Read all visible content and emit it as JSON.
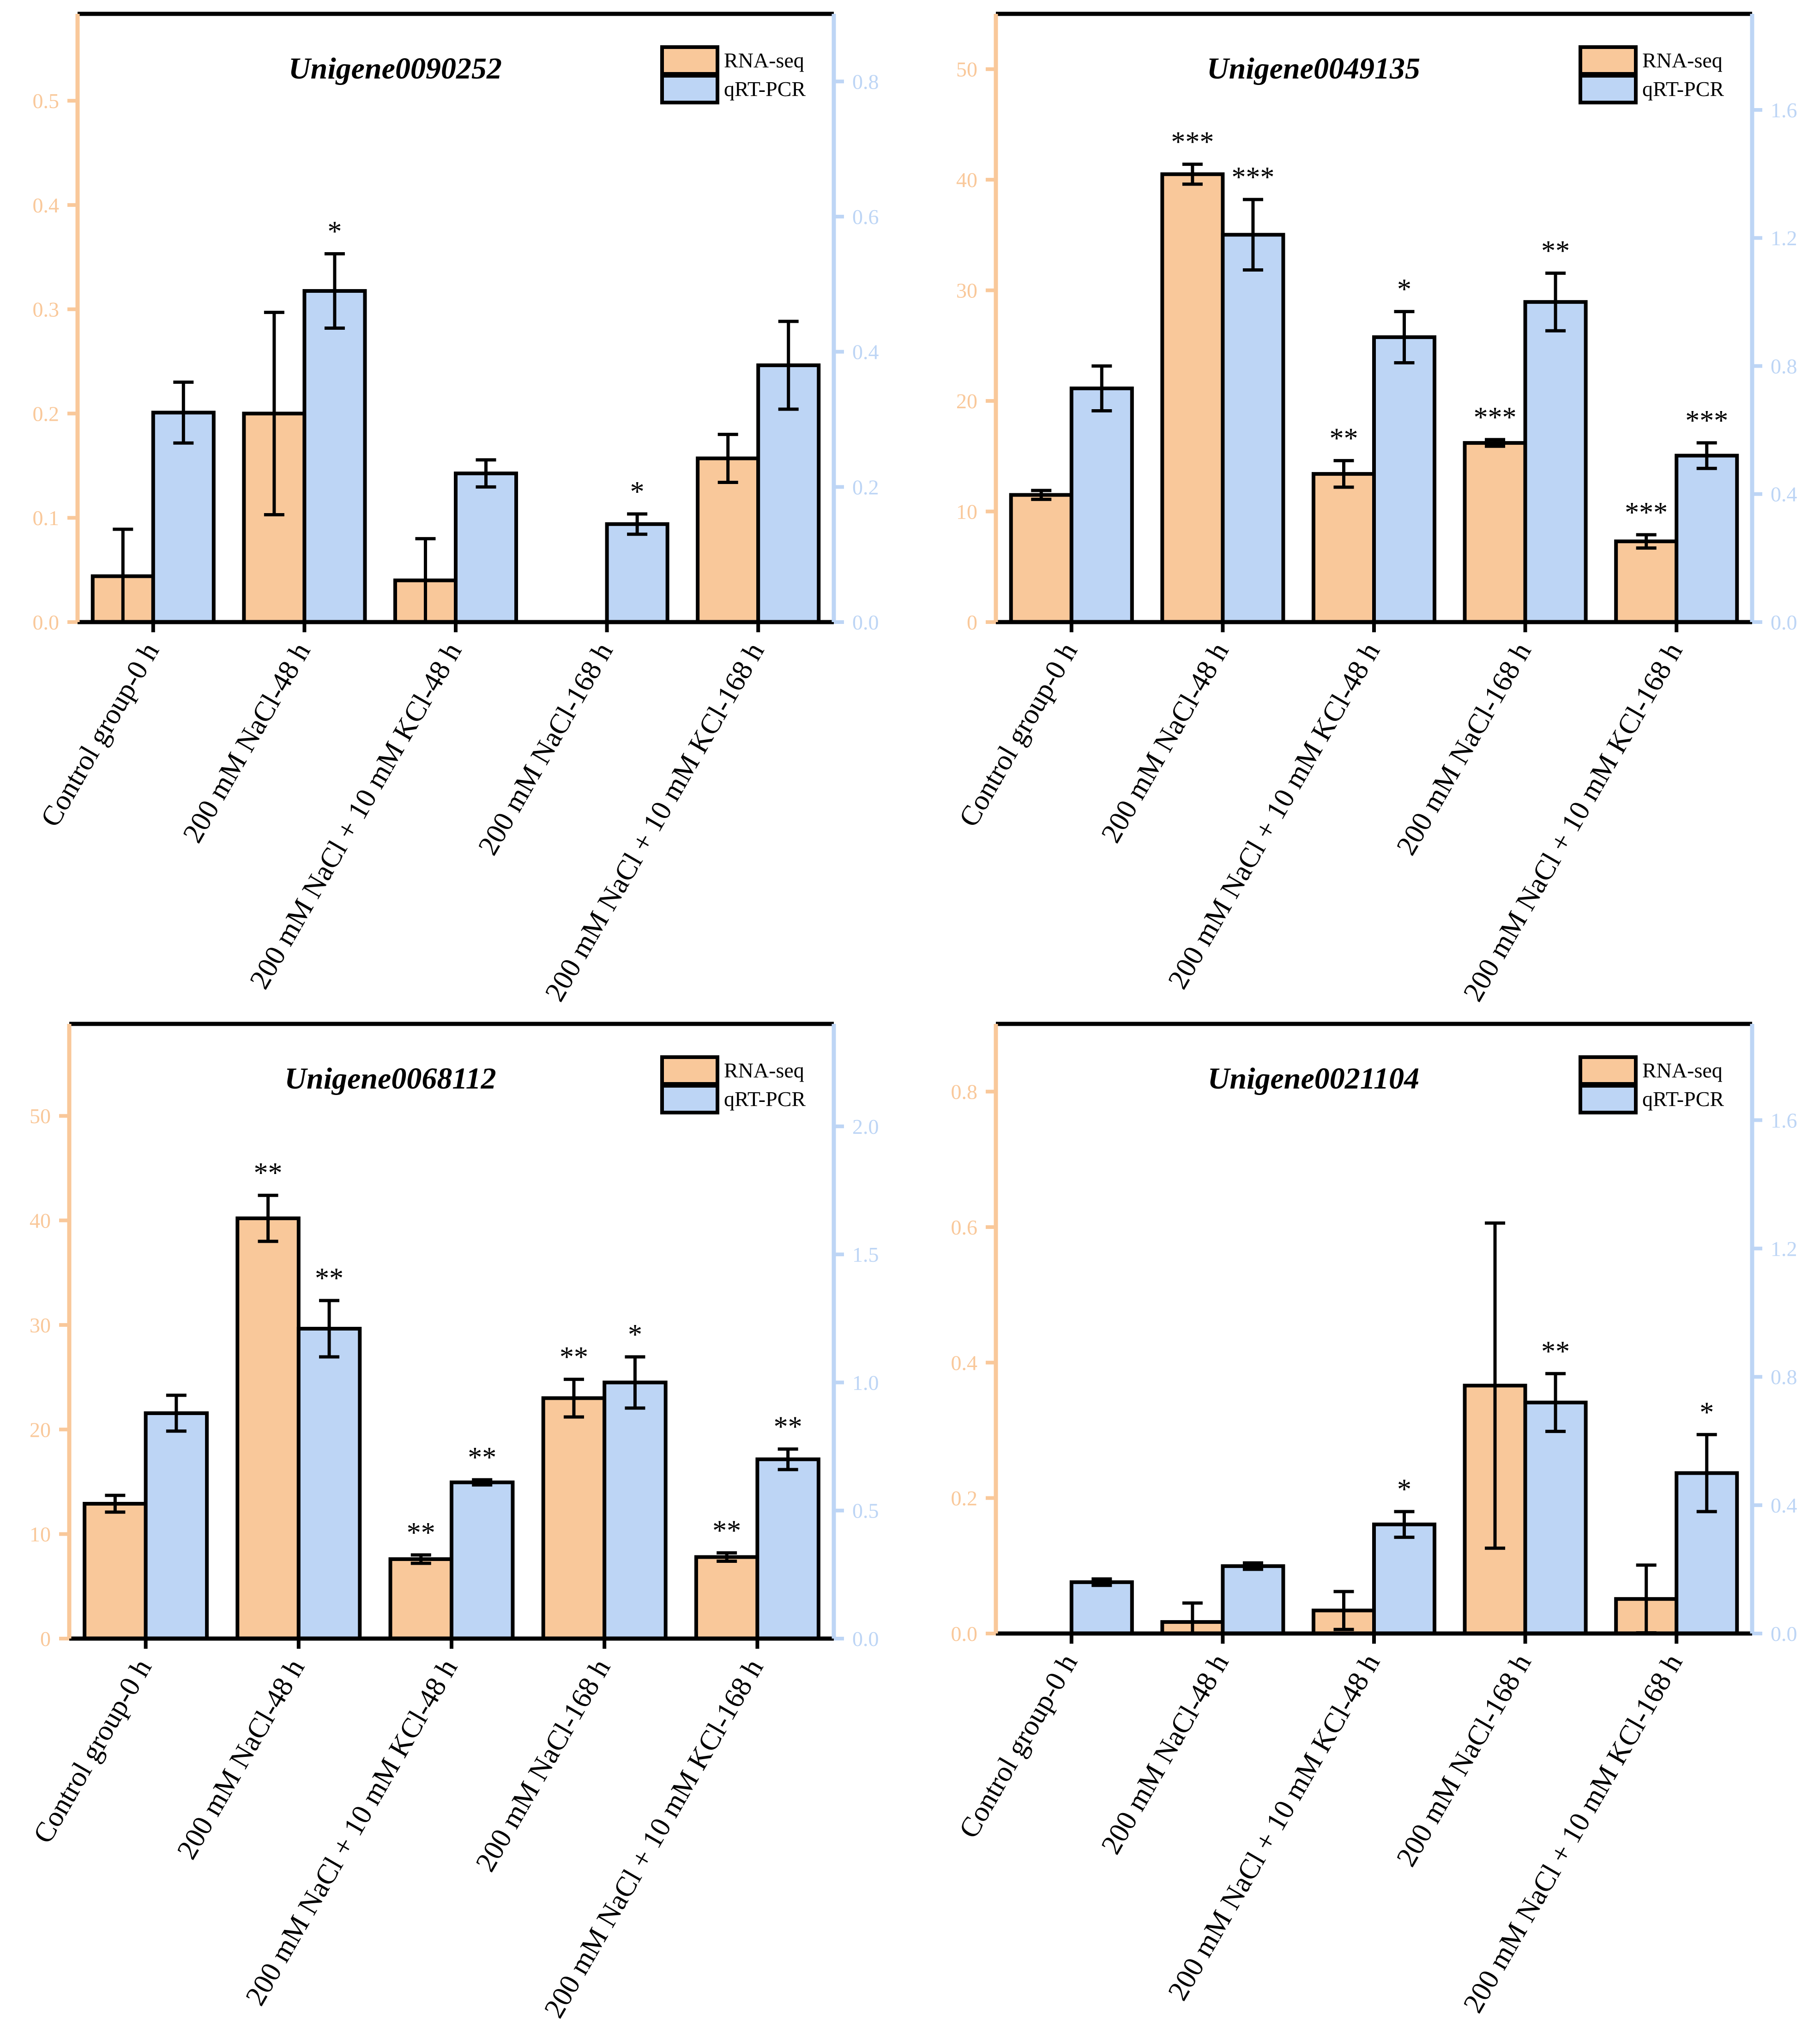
{
  "colors": {
    "rna": "#F9C89A",
    "qpcr": "#BDD5F5",
    "left_axis": "#F9C89A",
    "right_axis": "#BDD5F5",
    "bar_stroke": "#000000"
  },
  "chart_data": [
    {
      "type": "bar",
      "title": "Unigene0090252",
      "categories": [
        "Control group-0 h",
        "200 mM NaCl-48 h",
        "200 mM NaCl + 10 mM KCl-48 h",
        "200 mM NaCl-168 h",
        "200 mM NaCl + 10 mM KCl-168 h"
      ],
      "series": [
        {
          "name": "RNA-seq",
          "axis": "left",
          "values": [
            0.044,
            0.2,
            0.04,
            0,
            0.157
          ],
          "errors": [
            0.045,
            0.097,
            0.04,
            0,
            0.023
          ],
          "sig": [
            "",
            "",
            "",
            "",
            ""
          ]
        },
        {
          "name": "qRT-PCR",
          "axis": "right",
          "values": [
            0.31,
            0.49,
            0.22,
            0.145,
            0.38
          ],
          "errors": [
            0.045,
            0.055,
            0.02,
            0.015,
            0.065
          ],
          "sig": [
            "",
            "*",
            "",
            "*",
            ""
          ]
        }
      ],
      "left_axis": {
        "min": 0,
        "max": 0.5833,
        "ticks": [
          0.0,
          0.1,
          0.2,
          0.3,
          0.4,
          0.5
        ],
        "labels": [
          "0.0",
          "0.1",
          "0.2",
          "0.3",
          "0.4",
          "0.5"
        ]
      },
      "right_axis": {
        "min": 0,
        "max": 0.9,
        "ticks": [
          0.0,
          0.2,
          0.4,
          0.6,
          0.8
        ],
        "labels": [
          "0.0",
          "0.2",
          "0.4",
          "0.6",
          "0.8"
        ]
      },
      "legend": [
        "RNA-seq",
        "qRT-PCR"
      ],
      "legend_position": "top-right"
    },
    {
      "type": "bar",
      "title": "Unigene0049135",
      "categories": [
        "Control group-0 h",
        "200 mM NaCl-48 h",
        "200 mM NaCl + 10 mM KCl-48 h",
        "200 mM NaCl-168 h",
        "200 mM NaCl + 10 mM KCl-168 h"
      ],
      "series": [
        {
          "name": "RNA-seq",
          "axis": "left",
          "values": [
            11.5,
            40.5,
            13.4,
            16.2,
            7.3
          ],
          "errors": [
            0.4,
            0.9,
            1.2,
            0.3,
            0.6
          ],
          "sig": [
            "",
            "***",
            "**",
            "***",
            "***"
          ]
        },
        {
          "name": "qRT-PCR",
          "axis": "right",
          "values": [
            0.73,
            1.21,
            0.89,
            1.0,
            0.52
          ],
          "errors": [
            0.07,
            0.11,
            0.08,
            0.09,
            0.04
          ],
          "sig": [
            "",
            "***",
            "*",
            "**",
            "***"
          ]
        }
      ],
      "left_axis": {
        "min": 0,
        "max": 55,
        "ticks": [
          0,
          10,
          20,
          30,
          40,
          50
        ],
        "labels": [
          "0",
          "10",
          "20",
          "30",
          "40",
          "50"
        ]
      },
      "right_axis": {
        "min": 0,
        "max": 1.9,
        "ticks": [
          0.0,
          0.4,
          0.8,
          1.2,
          1.6
        ],
        "labels": [
          "0.0",
          "0.4",
          "0.8",
          "1.2",
          "1.6"
        ]
      },
      "legend": [
        "RNA-seq",
        "qRT-PCR"
      ],
      "legend_position": "top-right"
    },
    {
      "type": "bar",
      "title": "Unigene0068112",
      "categories": [
        "Control group-0 h",
        "200 mM NaCl-48 h",
        "200 mM NaCl + 10 mM KCl-48 h",
        "200 mM NaCl-168 h",
        "200 mM NaCl + 10 mM KCl-168 h"
      ],
      "series": [
        {
          "name": "RNA-seq",
          "axis": "left",
          "values": [
            12.9,
            40.2,
            7.6,
            23.0,
            7.8
          ],
          "errors": [
            0.8,
            2.2,
            0.4,
            1.8,
            0.4
          ],
          "sig": [
            "",
            "**",
            "**",
            "**",
            "**"
          ]
        },
        {
          "name": "qRT-PCR",
          "axis": "right",
          "values": [
            0.88,
            1.21,
            0.61,
            1.0,
            0.7
          ],
          "errors": [
            0.07,
            0.11,
            0.01,
            0.1,
            0.04
          ],
          "sig": [
            "",
            "**",
            "**",
            "*",
            "**"
          ]
        }
      ],
      "left_axis": {
        "min": 0,
        "max": 58.8,
        "ticks": [
          0,
          10,
          20,
          30,
          40,
          50
        ],
        "labels": [
          "0",
          "10",
          "20",
          "30",
          "40",
          "50"
        ]
      },
      "right_axis": {
        "min": 0,
        "max": 2.4,
        "ticks": [
          0.0,
          0.5,
          1.0,
          1.5,
          2.0
        ],
        "labels": [
          "0.0",
          "0.5",
          "1.0",
          "1.5",
          "2.0"
        ]
      },
      "legend": [
        "RNA-seq",
        "qRT-PCR"
      ],
      "legend_position": "top-right"
    },
    {
      "type": "bar",
      "title": "Unigene0021104",
      "categories": [
        "Control group-0 h",
        "200 mM NaCl-48 h",
        "200 mM NaCl + 10 mM KCl-48 h",
        "200 mM NaCl-168 h",
        "200 mM NaCl + 10 mM KCl-168 h"
      ],
      "series": [
        {
          "name": "RNA-seq",
          "axis": "left",
          "values": [
            0,
            0.017,
            0.034,
            0.366,
            0.051
          ],
          "errors": [
            0,
            0.028,
            0.028,
            0.24,
            0.05
          ],
          "sig": [
            "",
            "",
            "",
            "",
            ""
          ]
        },
        {
          "name": "qRT-PCR",
          "axis": "right",
          "values": [
            0.16,
            0.21,
            0.34,
            0.72,
            0.5
          ],
          "errors": [
            0.01,
            0.01,
            0.04,
            0.09,
            0.12
          ],
          "sig": [
            "",
            "",
            "*",
            "**",
            "*"
          ]
        }
      ],
      "left_axis": {
        "min": 0,
        "max": 0.9,
        "ticks": [
          0.0,
          0.2,
          0.4,
          0.6,
          0.8
        ],
        "labels": [
          "0.0",
          "0.2",
          "0.4",
          "0.6",
          "0.8"
        ]
      },
      "right_axis": {
        "min": 0,
        "max": 1.9,
        "ticks": [
          0.0,
          0.4,
          0.8,
          1.2,
          1.6
        ],
        "labels": [
          "0.0",
          "0.4",
          "0.8",
          "1.2",
          "1.6"
        ]
      },
      "legend": [
        "RNA-seq",
        "qRT-PCR"
      ],
      "legend_position": "top-right"
    }
  ]
}
